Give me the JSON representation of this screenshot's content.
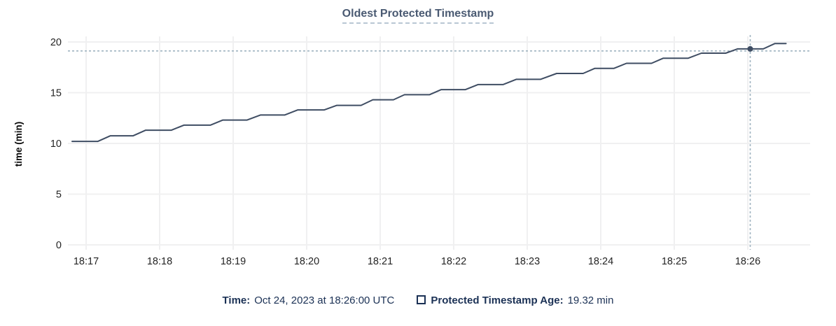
{
  "colors": {
    "title": "#4a5a72",
    "title_underline": "#b9c7d4",
    "legend_text": "#1b3155",
    "series_line": "#3f4d63",
    "crosshair": "#9fb3c0",
    "gridline": "#f0f0f1",
    "tick_text": "#242424",
    "axis_title_text": "#0a0a0a"
  },
  "footer": {
    "time_label": "Time:",
    "time_value": "Oct 24, 2023 at 18:26:00 UTC",
    "series_label": "Protected Timestamp Age:",
    "series_value": "19.32 min"
  },
  "chart_data": {
    "type": "line",
    "title": "Oldest Protected Timestamp",
    "xlabel": "",
    "ylabel": "time (min)",
    "ylim": [
      0,
      20
    ],
    "yticks": [
      0,
      5,
      10,
      15,
      20
    ],
    "xticks": [
      "18:17",
      "18:18",
      "18:19",
      "18:20",
      "18:21",
      "18:22",
      "18:23",
      "18:24",
      "18:25",
      "18:26"
    ],
    "x_unit": "minutes since 18:17 UTC",
    "grid": true,
    "legend_position": "bottom",
    "series": [
      {
        "name": "Protected Timestamp Age",
        "points": [
          [
            -0.19,
            10.2
          ],
          [
            0.16,
            10.2
          ],
          [
            0.33,
            10.75
          ],
          [
            0.64,
            10.75
          ],
          [
            0.81,
            11.3
          ],
          [
            1.16,
            11.3
          ],
          [
            1.33,
            11.8
          ],
          [
            1.69,
            11.8
          ],
          [
            1.86,
            12.3
          ],
          [
            2.19,
            12.3
          ],
          [
            2.37,
            12.8
          ],
          [
            2.7,
            12.8
          ],
          [
            2.88,
            13.3
          ],
          [
            3.24,
            13.3
          ],
          [
            3.41,
            13.75
          ],
          [
            3.74,
            13.75
          ],
          [
            3.9,
            14.3
          ],
          [
            4.18,
            14.3
          ],
          [
            4.33,
            14.8
          ],
          [
            4.67,
            14.8
          ],
          [
            4.83,
            15.3
          ],
          [
            5.16,
            15.3
          ],
          [
            5.33,
            15.8
          ],
          [
            5.67,
            15.8
          ],
          [
            5.85,
            16.32
          ],
          [
            6.18,
            16.32
          ],
          [
            6.4,
            16.9
          ],
          [
            6.76,
            16.9
          ],
          [
            6.92,
            17.4
          ],
          [
            7.18,
            17.4
          ],
          [
            7.35,
            17.9
          ],
          [
            7.69,
            17.9
          ],
          [
            7.85,
            18.4
          ],
          [
            8.19,
            18.4
          ],
          [
            8.37,
            18.9
          ],
          [
            8.7,
            18.9
          ],
          [
            8.86,
            19.32
          ],
          [
            9.21,
            19.32
          ],
          [
            9.37,
            19.85
          ],
          [
            9.52,
            19.85
          ]
        ]
      }
    ],
    "crosshair": {
      "time": "18:26:00",
      "x_min": 9.0,
      "value_min": 19.32
    }
  }
}
